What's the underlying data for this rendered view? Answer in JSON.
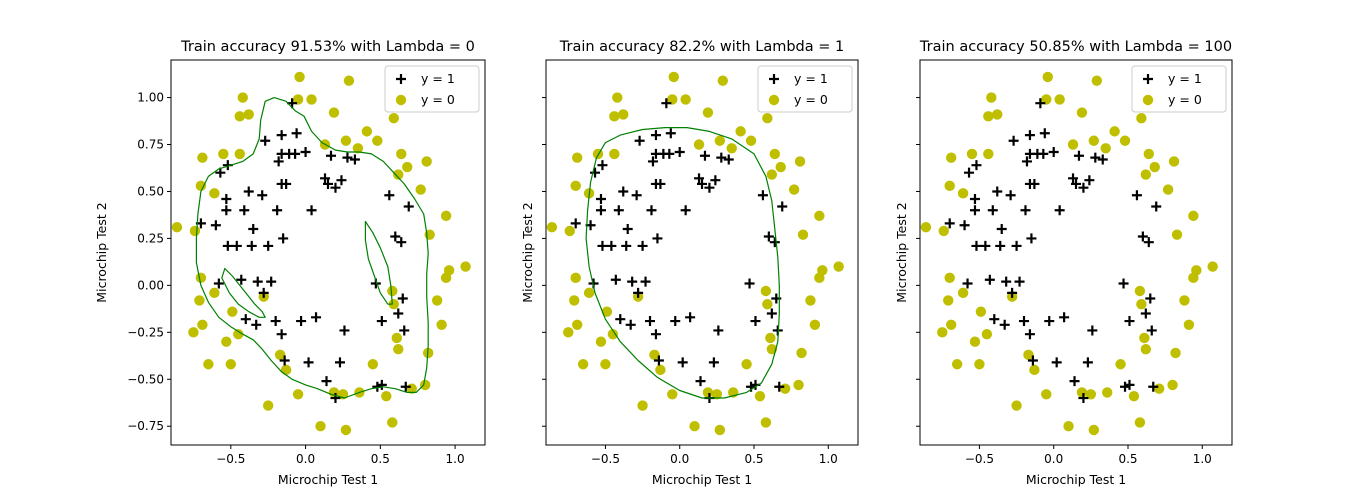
{
  "figure": {
    "background": "#ffffff"
  },
  "chart_data": [
    {
      "type": "scatter",
      "title": "Train accuracy 91.53% with Lambda = 0",
      "xlabel": "Microchip Test 1",
      "ylabel": "Microchip Test 2",
      "xlim": [
        -0.9,
        1.2
      ],
      "ylim": [
        -0.85,
        1.2
      ],
      "xticks": [
        -0.5,
        0.0,
        0.5,
        1.0
      ],
      "xtick_labels": [
        "−0.5",
        "0.0",
        "0.5",
        "1.0"
      ],
      "yticks": [
        -0.75,
        -0.5,
        -0.25,
        0.0,
        0.25,
        0.5,
        0.75,
        1.0
      ],
      "ytick_labels": [
        "−0.75",
        "−0.50",
        "−0.25",
        "0.00",
        "0.25",
        "0.50",
        "0.75",
        "1.00"
      ],
      "show_yticklabels": true,
      "legend_position": "top-right",
      "legend": [
        "y = 1",
        "y = 0"
      ],
      "boundary": "lambda0"
    },
    {
      "type": "scatter",
      "title": "Train accuracy 82.2% with Lambda = 1",
      "xlabel": "Microchip Test 1",
      "ylabel": "Microchip Test 2",
      "xlim": [
        -0.9,
        1.2
      ],
      "ylim": [
        -0.85,
        1.2
      ],
      "xticks": [
        -0.5,
        0.0,
        0.5,
        1.0
      ],
      "xtick_labels": [
        "−0.5",
        "0.0",
        "0.5",
        "1.0"
      ],
      "yticks": [
        -0.75,
        -0.5,
        -0.25,
        0.0,
        0.25,
        0.5,
        0.75,
        1.0
      ],
      "ytick_labels": [],
      "show_yticklabels": false,
      "legend_position": "top-right",
      "legend": [
        "y = 1",
        "y = 0"
      ],
      "boundary": "lambda1"
    },
    {
      "type": "scatter",
      "title": "Train accuracy 50.85% with Lambda = 100",
      "xlabel": "Microchip Test 1",
      "ylabel": "Microchip Test 2",
      "xlim": [
        -0.9,
        1.2
      ],
      "ylim": [
        -0.85,
        1.2
      ],
      "xticks": [
        -0.5,
        0.0,
        0.5,
        1.0
      ],
      "xtick_labels": [
        "−0.5",
        "0.0",
        "0.5",
        "1.0"
      ],
      "yticks": [
        -0.75,
        -0.5,
        -0.25,
        0.0,
        0.25,
        0.5,
        0.75,
        1.0
      ],
      "ytick_labels": [],
      "show_yticklabels": false,
      "legend_position": "top-right",
      "legend": [
        "y = 1",
        "y = 0"
      ],
      "boundary": "none"
    }
  ],
  "series": {
    "positive": {
      "name": "y = 1",
      "marker": "plus",
      "color": "#000000",
      "points": [
        [
          -0.09,
          0.97
        ],
        [
          -0.06,
          0.81
        ],
        [
          -0.16,
          0.8
        ],
        [
          -0.11,
          0.7
        ],
        [
          -0.16,
          0.7
        ],
        [
          -0.07,
          0.7
        ],
        [
          -0.18,
          0.66
        ],
        [
          -0.27,
          0.77
        ],
        [
          0.0,
          0.71
        ],
        [
          0.17,
          0.69
        ],
        [
          0.28,
          0.68
        ],
        [
          0.33,
          0.67
        ],
        [
          0.24,
          0.56
        ],
        [
          0.2,
          0.52
        ],
        [
          0.13,
          0.57
        ],
        [
          0.15,
          0.54
        ],
        [
          -0.16,
          0.54
        ],
        [
          -0.13,
          0.54
        ],
        [
          -0.57,
          0.6
        ],
        [
          -0.52,
          0.64
        ],
        [
          -0.53,
          0.46
        ],
        [
          -0.38,
          0.5
        ],
        [
          -0.29,
          0.48
        ],
        [
          -0.41,
          0.4
        ],
        [
          -0.53,
          0.4
        ],
        [
          -0.6,
          0.32
        ],
        [
          -0.7,
          0.33
        ],
        [
          -0.52,
          0.21
        ],
        [
          -0.46,
          0.21
        ],
        [
          -0.36,
          0.21
        ],
        [
          -0.19,
          0.4
        ],
        [
          -0.35,
          0.3
        ],
        [
          -0.15,
          0.25
        ],
        [
          -0.25,
          0.21
        ],
        [
          0.04,
          0.4
        ],
        [
          0.56,
          0.48
        ],
        [
          0.69,
          0.42
        ],
        [
          0.6,
          0.26
        ],
        [
          0.64,
          0.23
        ],
        [
          -0.43,
          0.03
        ],
        [
          -0.32,
          0.02
        ],
        [
          -0.23,
          0.02
        ],
        [
          -0.58,
          0.01
        ],
        [
          -0.28,
          -0.04
        ],
        [
          0.47,
          0.01
        ],
        [
          0.65,
          -0.07
        ],
        [
          -0.4,
          -0.18
        ],
        [
          -0.33,
          -0.21
        ],
        [
          -0.16,
          -0.26
        ],
        [
          -0.2,
          -0.19
        ],
        [
          -0.03,
          -0.19
        ],
        [
          0.07,
          -0.17
        ],
        [
          0.26,
          -0.24
        ],
        [
          0.51,
          -0.19
        ],
        [
          0.62,
          -0.15
        ],
        [
          0.66,
          -0.24
        ],
        [
          -0.14,
          -0.4
        ],
        [
          0.02,
          -0.41
        ],
        [
          0.23,
          -0.41
        ],
        [
          0.14,
          -0.51
        ],
        [
          0.2,
          -0.6
        ],
        [
          0.48,
          -0.54
        ],
        [
          0.51,
          -0.53
        ],
        [
          0.67,
          -0.54
        ]
      ]
    },
    "negative": {
      "name": "y = 0",
      "marker": "circle",
      "color": "#bfbf00",
      "points": [
        [
          -0.04,
          1.11
        ],
        [
          0.29,
          1.09
        ],
        [
          -0.42,
          1.0
        ],
        [
          -0.05,
          0.99
        ],
        [
          0.04,
          0.99
        ],
        [
          0.19,
          0.92
        ],
        [
          -0.44,
          0.9
        ],
        [
          -0.38,
          0.91
        ],
        [
          0.59,
          0.89
        ],
        [
          0.41,
          0.82
        ],
        [
          0.35,
          0.73
        ],
        [
          0.13,
          0.75
        ],
        [
          0.27,
          0.77
        ],
        [
          0.48,
          0.77
        ],
        [
          0.64,
          0.7
        ],
        [
          -0.55,
          0.7
        ],
        [
          -0.44,
          0.7
        ],
        [
          -0.69,
          0.68
        ],
        [
          0.81,
          0.66
        ],
        [
          0.62,
          0.59
        ],
        [
          0.68,
          0.63
        ],
        [
          -0.7,
          0.53
        ],
        [
          -0.61,
          0.49
        ],
        [
          0.77,
          0.51
        ],
        [
          0.94,
          0.37
        ],
        [
          0.83,
          0.27
        ],
        [
          -0.86,
          0.31
        ],
        [
          -0.74,
          0.29
        ],
        [
          0.96,
          0.08
        ],
        [
          1.07,
          0.1
        ],
        [
          -0.7,
          0.04
        ],
        [
          -0.61,
          -0.04
        ],
        [
          0.94,
          0.04
        ],
        [
          -0.71,
          -0.08
        ],
        [
          0.88,
          -0.08
        ],
        [
          -0.49,
          -0.14
        ],
        [
          -0.28,
          -0.06
        ],
        [
          0.58,
          -0.03
        ],
        [
          0.59,
          -0.1
        ],
        [
          -0.75,
          -0.25
        ],
        [
          -0.69,
          -0.21
        ],
        [
          0.91,
          -0.21
        ],
        [
          -0.53,
          -0.3
        ],
        [
          -0.45,
          -0.26
        ],
        [
          -0.17,
          -0.37
        ],
        [
          0.61,
          -0.28
        ],
        [
          0.62,
          -0.34
        ],
        [
          -0.65,
          -0.42
        ],
        [
          -0.5,
          -0.42
        ],
        [
          -0.13,
          -0.45
        ],
        [
          0.45,
          -0.42
        ],
        [
          0.82,
          -0.36
        ],
        [
          0.8,
          -0.53
        ],
        [
          0.71,
          -0.55
        ],
        [
          0.19,
          -0.57
        ],
        [
          0.25,
          -0.58
        ],
        [
          -0.05,
          -0.58
        ],
        [
          0.36,
          -0.57
        ],
        [
          -0.25,
          -0.64
        ],
        [
          0.54,
          -0.59
        ],
        [
          0.1,
          -0.75
        ],
        [
          0.27,
          -0.77
        ],
        [
          0.58,
          -0.73
        ]
      ]
    }
  },
  "boundaries": {
    "lambda0": {
      "color": "#008000",
      "curves": [
        [
          [
            -0.27,
            0.98
          ],
          [
            -0.21,
            1.0
          ],
          [
            -0.13,
            0.98
          ],
          [
            -0.07,
            0.93
          ],
          [
            -0.01,
            0.9
          ],
          [
            0.04,
            0.82
          ],
          [
            0.11,
            0.76
          ],
          [
            0.2,
            0.72
          ],
          [
            0.28,
            0.71
          ],
          [
            0.36,
            0.71
          ],
          [
            0.44,
            0.7
          ],
          [
            0.52,
            0.66
          ],
          [
            0.59,
            0.6
          ],
          [
            0.66,
            0.54
          ],
          [
            0.73,
            0.46
          ],
          [
            0.79,
            0.38
          ],
          [
            0.81,
            0.28
          ],
          [
            0.82,
            0.17
          ],
          [
            0.81,
            0.06
          ],
          [
            0.81,
            -0.06
          ],
          [
            0.82,
            -0.2
          ],
          [
            0.82,
            -0.32
          ],
          [
            0.81,
            -0.44
          ],
          [
            0.79,
            -0.53
          ],
          [
            0.74,
            -0.57
          ],
          [
            0.68,
            -0.57
          ],
          [
            0.6,
            -0.55
          ],
          [
            0.52,
            -0.54
          ],
          [
            0.44,
            -0.55
          ],
          [
            0.36,
            -0.57
          ],
          [
            0.26,
            -0.6
          ],
          [
            0.17,
            -0.58
          ],
          [
            0.08,
            -0.55
          ],
          [
            0.0,
            -0.53
          ],
          [
            -0.09,
            -0.5
          ],
          [
            -0.16,
            -0.46
          ],
          [
            -0.23,
            -0.4
          ],
          [
            -0.29,
            -0.34
          ],
          [
            -0.35,
            -0.29
          ],
          [
            -0.42,
            -0.26
          ],
          [
            -0.5,
            -0.22
          ],
          [
            -0.58,
            -0.17
          ],
          [
            -0.65,
            -0.09
          ],
          [
            -0.7,
            0.0
          ],
          [
            -0.73,
            0.12
          ],
          [
            -0.73,
            0.25
          ],
          [
            -0.72,
            0.38
          ],
          [
            -0.7,
            0.5
          ],
          [
            -0.65,
            0.58
          ],
          [
            -0.58,
            0.62
          ],
          [
            -0.5,
            0.64
          ],
          [
            -0.42,
            0.66
          ],
          [
            -0.35,
            0.7
          ],
          [
            -0.31,
            0.78
          ],
          [
            -0.3,
            0.88
          ],
          [
            -0.27,
            0.98
          ]
        ],
        [
          [
            0.4,
            0.34
          ],
          [
            0.45,
            0.28
          ],
          [
            0.5,
            0.2
          ],
          [
            0.55,
            0.1
          ],
          [
            0.57,
            0.0
          ],
          [
            0.58,
            -0.1
          ],
          [
            0.55,
            -0.1
          ],
          [
            0.5,
            -0.04
          ],
          [
            0.46,
            0.05
          ],
          [
            0.42,
            0.14
          ],
          [
            0.4,
            0.24
          ],
          [
            0.4,
            0.34
          ]
        ],
        [
          [
            -0.54,
            0.09
          ],
          [
            -0.49,
            0.05
          ],
          [
            -0.44,
            0.0
          ],
          [
            -0.39,
            -0.05
          ],
          [
            -0.34,
            -0.1
          ],
          [
            -0.29,
            -0.14
          ],
          [
            -0.27,
            -0.17
          ],
          [
            -0.31,
            -0.17
          ],
          [
            -0.38,
            -0.14
          ],
          [
            -0.45,
            -0.1
          ],
          [
            -0.51,
            -0.04
          ],
          [
            -0.56,
            0.04
          ],
          [
            -0.54,
            0.09
          ]
        ]
      ]
    },
    "lambda1": {
      "color": "#008000",
      "curves": [
        [
          [
            -0.5,
            0.76
          ],
          [
            -0.4,
            0.8
          ],
          [
            -0.25,
            0.83
          ],
          [
            -0.1,
            0.84
          ],
          [
            0.05,
            0.84
          ],
          [
            0.2,
            0.82
          ],
          [
            0.35,
            0.78
          ],
          [
            0.5,
            0.7
          ],
          [
            0.58,
            0.58
          ],
          [
            0.62,
            0.45
          ],
          [
            0.64,
            0.3
          ],
          [
            0.66,
            0.15
          ],
          [
            0.67,
            0.0
          ],
          [
            0.67,
            -0.15
          ],
          [
            0.66,
            -0.3
          ],
          [
            0.62,
            -0.42
          ],
          [
            0.55,
            -0.52
          ],
          [
            0.45,
            -0.57
          ],
          [
            0.3,
            -0.6
          ],
          [
            0.15,
            -0.6
          ],
          [
            0.0,
            -0.56
          ],
          [
            -0.15,
            -0.49
          ],
          [
            -0.28,
            -0.4
          ],
          [
            -0.4,
            -0.3
          ],
          [
            -0.5,
            -0.18
          ],
          [
            -0.57,
            -0.04
          ],
          [
            -0.61,
            0.1
          ],
          [
            -0.63,
            0.25
          ],
          [
            -0.62,
            0.4
          ],
          [
            -0.6,
            0.55
          ],
          [
            -0.56,
            0.68
          ],
          [
            -0.5,
            0.76
          ]
        ]
      ]
    }
  }
}
